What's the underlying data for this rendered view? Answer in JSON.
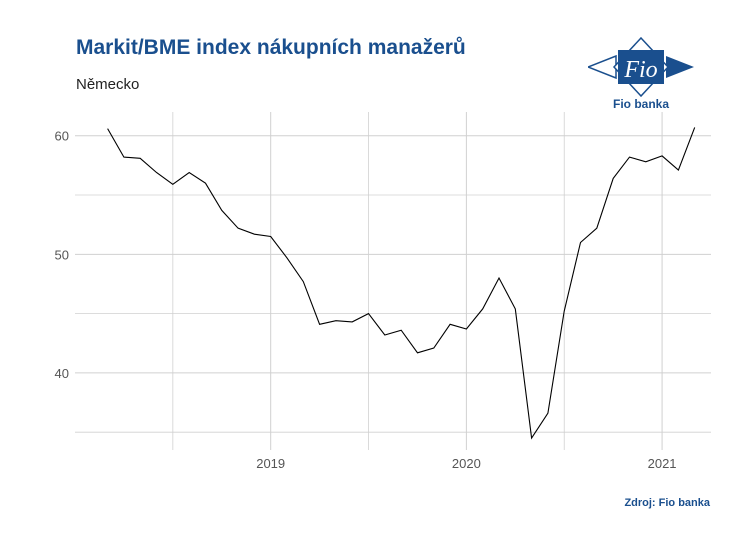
{
  "header": {
    "title": "Markit/BME index nákupních manažerů",
    "subtitle": "Německo"
  },
  "logo": {
    "text": "Fio banka",
    "mark_text": "Fio",
    "icon": "fio-banka-logo"
  },
  "footer": {
    "source": "Zdroj: Fio banka"
  },
  "colors": {
    "brand": "#1a4f8e",
    "line": "#000000",
    "grid": "#d0d0d0"
  },
  "chart_data": {
    "type": "line",
    "title": "",
    "xlabel": "",
    "ylabel": "",
    "ylim": [
      33.5,
      62
    ],
    "xlim": [
      "2018-01",
      "2021-04"
    ],
    "grid": true,
    "y_ticks": [
      40,
      50,
      60
    ],
    "x_ticks": [
      {
        "value": "2019-01",
        "label": "2019"
      },
      {
        "value": "2020-01",
        "label": "2020"
      },
      {
        "value": "2021-01",
        "label": "2021"
      }
    ],
    "series": [
      {
        "x": [
          "2018-03",
          "2018-04",
          "2018-05",
          "2018-06",
          "2018-07",
          "2018-08",
          "2018-09",
          "2018-10",
          "2018-11",
          "2018-12",
          "2019-01",
          "2019-02",
          "2019-03",
          "2019-04",
          "2019-05",
          "2019-06",
          "2019-07",
          "2019-08",
          "2019-09",
          "2019-10",
          "2019-11",
          "2019-12",
          "2020-01",
          "2020-02",
          "2020-03",
          "2020-04",
          "2020-05",
          "2020-06",
          "2020-07",
          "2020-08",
          "2020-09",
          "2020-10",
          "2020-11",
          "2020-12",
          "2021-01",
          "2021-02",
          "2021-03"
        ],
        "values": [
          60.6,
          58.2,
          58.1,
          56.9,
          55.9,
          56.9,
          56.0,
          53.7,
          52.2,
          51.7,
          51.5,
          49.7,
          47.7,
          44.1,
          44.4,
          44.3,
          45.0,
          43.2,
          43.6,
          41.7,
          42.1,
          44.1,
          43.7,
          45.4,
          48.0,
          45.4,
          34.5,
          36.6,
          45.2,
          51.0,
          52.2,
          56.4,
          58.2,
          57.8,
          58.3,
          57.1,
          60.7
        ]
      }
    ]
  }
}
